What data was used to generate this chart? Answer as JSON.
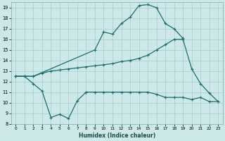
{
  "xlabel": "Humidex (Indice chaleur)",
  "bg_color": "#cce8e8",
  "line_color": "#1a6e6e",
  "grid_color": "#aacccc",
  "xlim": [
    -0.5,
    23.5
  ],
  "ylim": [
    8,
    19.5
  ],
  "yticks": [
    8,
    9,
    10,
    11,
    12,
    13,
    14,
    15,
    16,
    17,
    18,
    19
  ],
  "xticks": [
    0,
    1,
    2,
    3,
    4,
    5,
    6,
    7,
    8,
    9,
    10,
    11,
    12,
    13,
    14,
    15,
    16,
    17,
    18,
    19,
    20,
    21,
    22,
    23
  ],
  "curve1_x": [
    0,
    1,
    2,
    3,
    4,
    5,
    6,
    7,
    8
  ],
  "curve1_y": [
    12.5,
    12.5,
    11.8,
    11.1,
    8.6,
    8.9,
    8.5,
    10.2,
    11.0
  ],
  "curve2_x": [
    8,
    9,
    10,
    11,
    12,
    13,
    14,
    15,
    16,
    17,
    18,
    19,
    20,
    21,
    22,
    23
  ],
  "curve2_y": [
    11.0,
    11.0,
    11.0,
    11.0,
    11.0,
    11.0,
    11.0,
    11.0,
    10.8,
    10.5,
    10.5,
    10.5,
    10.3,
    10.5,
    10.1,
    10.1
  ],
  "curve3_x": [
    0,
    1,
    2,
    9,
    10,
    11,
    12,
    13,
    14,
    15,
    16,
    17,
    18,
    19
  ],
  "curve3_y": [
    12.5,
    12.5,
    12.5,
    15.0,
    16.7,
    16.5,
    17.5,
    18.1,
    19.2,
    19.3,
    19.0,
    17.5,
    17.0,
    16.1
  ],
  "curve4_x": [
    0,
    1,
    2,
    3,
    4,
    5,
    6,
    7,
    8,
    9,
    10,
    11,
    12,
    13,
    14,
    15,
    16,
    17,
    18,
    19,
    20,
    21,
    22,
    23
  ],
  "curve4_y": [
    12.5,
    12.5,
    12.5,
    12.8,
    13.0,
    13.1,
    13.2,
    13.3,
    13.4,
    13.5,
    13.6,
    13.7,
    13.9,
    14.0,
    14.2,
    14.5,
    15.0,
    15.5,
    16.0,
    16.0,
    13.2,
    11.8,
    10.9,
    10.1
  ]
}
